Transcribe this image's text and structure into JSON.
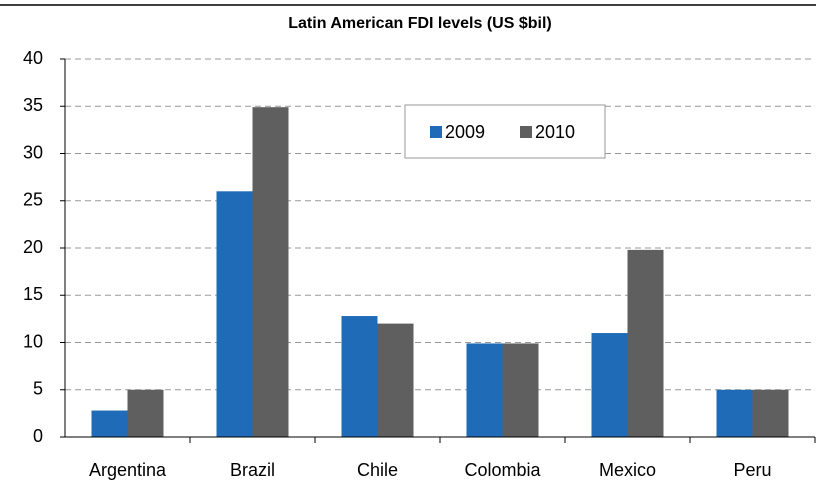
{
  "chart_data": {
    "type": "bar",
    "title": "Latin American FDI levels (US $bil)",
    "categories": [
      "Argentina",
      "Brazil",
      "Chile",
      "Colombia",
      "Mexico",
      "Peru"
    ],
    "series": [
      {
        "name": "2009",
        "color": "#1f6bb8",
        "values": [
          2.8,
          26,
          12.8,
          9.9,
          11,
          5
        ]
      },
      {
        "name": "2010",
        "color": "#5f5f5f",
        "values": [
          5,
          34.9,
          12,
          9.9,
          19.8,
          5
        ]
      }
    ],
    "ylim": [
      0,
      40
    ],
    "yticks": [
      0,
      5,
      10,
      15,
      20,
      25,
      30,
      35,
      40
    ],
    "grid": true,
    "legend": "upper center"
  }
}
